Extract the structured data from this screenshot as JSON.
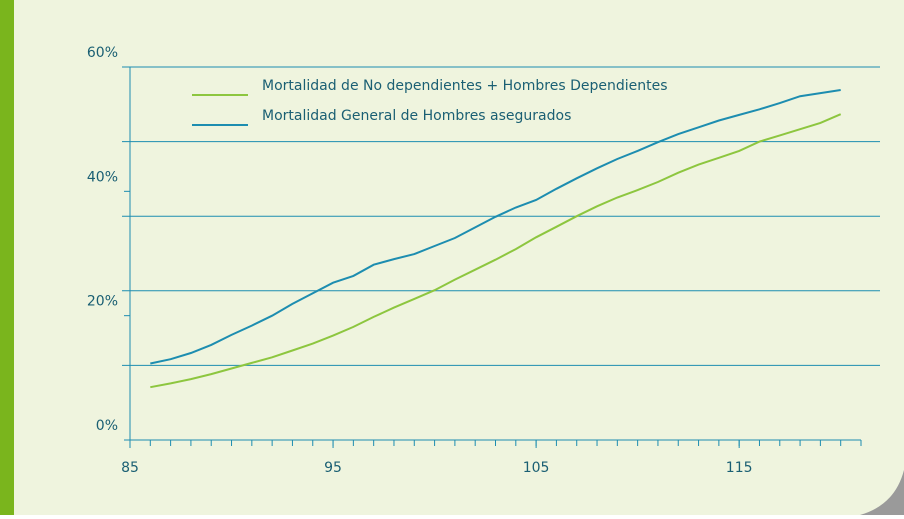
{
  "chart_data": {
    "type": "line",
    "x": [
      86,
      87,
      88,
      89,
      90,
      91,
      92,
      93,
      94,
      95,
      96,
      97,
      98,
      99,
      100,
      101,
      102,
      103,
      104,
      105,
      106,
      107,
      108,
      109,
      110,
      111,
      112,
      113,
      114,
      115,
      116,
      117,
      118,
      119,
      120
    ],
    "series": [
      {
        "name": "Mortalidad de No dependientes + Hombres Dependientes",
        "color": "#8dc63f",
        "values": [
          8.5,
          9.1,
          9.8,
          10.6,
          11.5,
          12.4,
          13.3,
          14.4,
          15.5,
          16.8,
          18.2,
          19.8,
          21.3,
          22.7,
          24.1,
          25.8,
          27.4,
          29.0,
          30.7,
          32.6,
          34.3,
          36.0,
          37.6,
          39.0,
          40.2,
          41.5,
          43.0,
          44.3,
          45.4,
          46.5,
          48.0,
          49.0,
          50.0,
          51.0,
          52.4
        ]
      },
      {
        "name": "Mortalidad General de Hombres  asegurados",
        "color": "#1d8db0",
        "values": [
          12.3,
          13.0,
          14.0,
          15.3,
          16.9,
          18.4,
          20.0,
          21.9,
          23.6,
          25.3,
          26.4,
          28.2,
          29.1,
          29.9,
          31.2,
          32.5,
          34.2,
          35.9,
          37.4,
          38.6,
          40.4,
          42.1,
          43.7,
          45.2,
          46.5,
          47.9,
          49.2,
          50.3,
          51.4,
          52.3,
          53.2,
          54.2,
          55.3,
          55.8,
          56.3
        ]
      }
    ],
    "xlim": [
      85,
      121
    ],
    "xticks": [
      85,
      95,
      105,
      115
    ],
    "xminorticks": [
      85,
      86,
      87,
      88,
      89,
      90,
      91,
      92,
      93,
      94,
      95,
      96,
      97,
      98,
      99,
      100,
      101,
      102,
      103,
      104,
      105,
      106,
      107,
      108,
      109,
      110,
      111,
      112,
      113,
      114,
      115,
      116,
      117,
      118,
      119,
      120,
      121
    ],
    "ylim": [
      0,
      60
    ],
    "yticks": [
      {
        "value": 0,
        "label": "0%"
      },
      {
        "value": 20,
        "label": "20%"
      },
      {
        "value": 40,
        "label": "40%"
      },
      {
        "value": 60,
        "label": "60%"
      }
    ],
    "grid_lines": [
      12,
      24,
      36,
      48,
      60
    ],
    "grid": true,
    "legend": "top"
  }
}
